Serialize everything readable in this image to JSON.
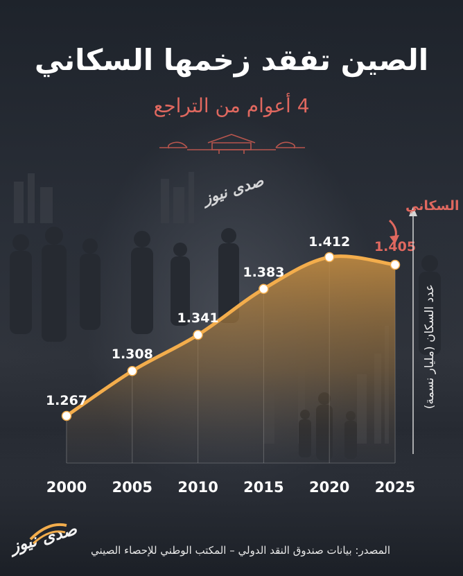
{
  "header": {
    "title": "الصين تفقد زخمها السكاني",
    "subtitle": "4 أعوام من التراجع"
  },
  "annotation": "بداية التراجع السكاني",
  "ylabel": "عدد السكان (مليار نسمة)",
  "source": "المصدر: بيانات صندوق النقد الدولي – المكتب الوطني للإحصاء الصيني",
  "brand": "صدى نيوز",
  "colors": {
    "accent": "#e0685f",
    "line": "#f3ad4c",
    "fill": "#b9853f"
  },
  "chart_data": {
    "type": "area",
    "x": [
      2000,
      2005,
      2010,
      2015,
      2020,
      2025
    ],
    "values": [
      1.267,
      1.308,
      1.341,
      1.383,
      1.412,
      1.405
    ],
    "value_labels": [
      "1.267",
      "1.308",
      "1.341",
      "1.383",
      "1.412",
      "1.405"
    ],
    "x_labels": [
      "2000",
      "2005",
      "2010",
      "2015",
      "2020",
      "2025"
    ],
    "ylabel": "عدد السكان (مليار نسمة)",
    "xlabel": "",
    "ylim": [
      1.2,
      1.45
    ],
    "grid": true
  }
}
